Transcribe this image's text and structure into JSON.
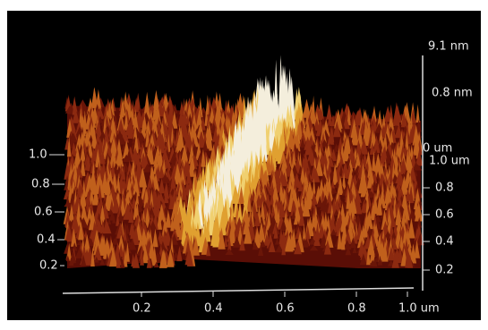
{
  "z_axis": {
    "top": "9.1 nm",
    "mid": "0.8 nm",
    "bottom": "0 um"
  },
  "left_axis": {
    "labels": [
      "1.0",
      "0.8",
      "0.6",
      "0.4",
      "0.2"
    ]
  },
  "right_axis": {
    "top": "1.0 um",
    "labels": [
      "0.8",
      "0.6",
      "0.4",
      "0.2"
    ]
  },
  "bottom_axis": {
    "labels": [
      "0.2",
      "0.4",
      "0.6",
      "0.8",
      "1.0 um"
    ]
  }
}
